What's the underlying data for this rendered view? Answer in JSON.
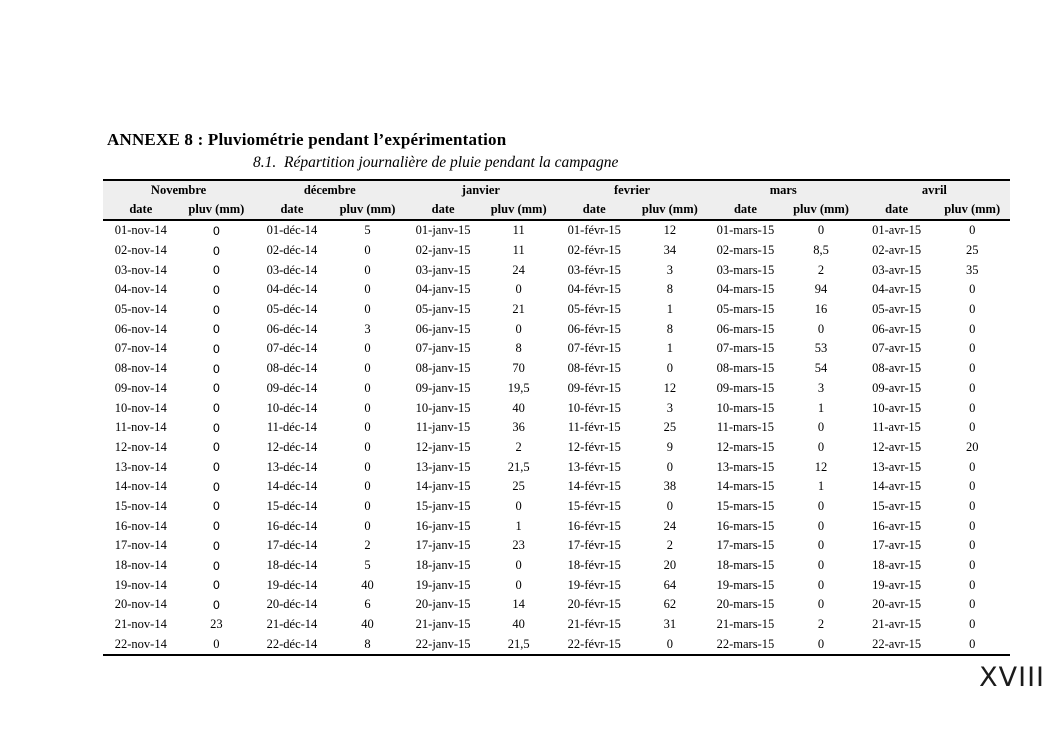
{
  "page": {
    "title": "ANNEXE 8 : Pluviométrie pendant l’expérimentation",
    "subtitle": "8.1.  Répartition journalière de pluie pendant la campagne",
    "page_number": "XVIII"
  },
  "table": {
    "months": [
      {
        "label": "Novembre",
        "date_header": "date",
        "pluv_header": "pluv (mm)",
        "dates": [
          "01-nov-14",
          "02-nov-14",
          "03-nov-14",
          "04-nov-14",
          "05-nov-14",
          "06-nov-14",
          "07-nov-14",
          "08-nov-14",
          "09-nov-14",
          "10-nov-14",
          "11-nov-14",
          "12-nov-14",
          "13-nov-14",
          "14-nov-14",
          "15-nov-14",
          "16-nov-14",
          "17-nov-14",
          "18-nov-14",
          "19-nov-14",
          "20-nov-14",
          "21-nov-14",
          "22-nov-14"
        ],
        "pluv": [
          "0",
          "0",
          "0",
          "0",
          "0",
          "0",
          "0",
          "0",
          "0",
          "0",
          "0",
          "0",
          "0",
          "0",
          "0",
          "0",
          "0",
          "0",
          "0",
          "0",
          "23",
          "0"
        ]
      },
      {
        "label": "décembre",
        "date_header": "date",
        "pluv_header": "pluv (mm)",
        "dates": [
          "01-déc-14",
          "02-déc-14",
          "03-déc-14",
          "04-déc-14",
          "05-déc-14",
          "06-déc-14",
          "07-déc-14",
          "08-déc-14",
          "09-déc-14",
          "10-déc-14",
          "11-déc-14",
          "12-déc-14",
          "13-déc-14",
          "14-déc-14",
          "15-déc-14",
          "16-déc-14",
          "17-déc-14",
          "18-déc-14",
          "19-déc-14",
          "20-déc-14",
          "21-déc-14",
          "22-déc-14"
        ],
        "pluv": [
          "5",
          "0",
          "0",
          "0",
          "0",
          "3",
          "0",
          "0",
          "0",
          "0",
          "0",
          "0",
          "0",
          "0",
          "0",
          "0",
          "2",
          "5",
          "40",
          "6",
          "40",
          "8"
        ]
      },
      {
        "label": "janvier",
        "date_header": "date",
        "pluv_header": "pluv (mm)",
        "dates": [
          "01-janv-15",
          "02-janv-15",
          "03-janv-15",
          "04-janv-15",
          "05-janv-15",
          "06-janv-15",
          "07-janv-15",
          "08-janv-15",
          "09-janv-15",
          "10-janv-15",
          "11-janv-15",
          "12-janv-15",
          "13-janv-15",
          "14-janv-15",
          "15-janv-15",
          "16-janv-15",
          "17-janv-15",
          "18-janv-15",
          "19-janv-15",
          "20-janv-15",
          "21-janv-15",
          "22-janv-15"
        ],
        "pluv": [
          "11",
          "11",
          "24",
          "0",
          "21",
          "0",
          "8",
          "70",
          "19,5",
          "40",
          "36",
          "2",
          "21,5",
          "25",
          "0",
          "1",
          "23",
          "0",
          "0",
          "14",
          "40",
          "21,5"
        ]
      },
      {
        "label": "fevrier",
        "date_header": "date",
        "pluv_header": "pluv (mm)",
        "dates": [
          "01-févr-15",
          "02-févr-15",
          "03-févr-15",
          "04-févr-15",
          "05-févr-15",
          "06-févr-15",
          "07-févr-15",
          "08-févr-15",
          "09-févr-15",
          "10-févr-15",
          "11-févr-15",
          "12-févr-15",
          "13-févr-15",
          "14-févr-15",
          "15-févr-15",
          "16-févr-15",
          "17-févr-15",
          "18-févr-15",
          "19-févr-15",
          "20-févr-15",
          "21-févr-15",
          "22-févr-15"
        ],
        "pluv": [
          "12",
          "34",
          "3",
          "8",
          "1",
          "8",
          "1",
          "0",
          "12",
          "3",
          "25",
          "9",
          "0",
          "38",
          "0",
          "24",
          "2",
          "20",
          "64",
          "62",
          "31",
          "0"
        ]
      },
      {
        "label": "mars",
        "date_header": "date",
        "pluv_header": "pluv (mm)",
        "dates": [
          "01-mars-15",
          "02-mars-15",
          "03-mars-15",
          "04-mars-15",
          "05-mars-15",
          "06-mars-15",
          "07-mars-15",
          "08-mars-15",
          "09-mars-15",
          "10-mars-15",
          "11-mars-15",
          "12-mars-15",
          "13-mars-15",
          "14-mars-15",
          "15-mars-15",
          "16-mars-15",
          "17-mars-15",
          "18-mars-15",
          "19-mars-15",
          "20-mars-15",
          "21-mars-15",
          "22-mars-15"
        ],
        "pluv": [
          "0",
          "8,5",
          "2",
          "94",
          "16",
          "0",
          "53",
          "54",
          "3",
          "1",
          "0",
          "0",
          "12",
          "1",
          "0",
          "0",
          "0",
          "0",
          "0",
          "0",
          "2",
          "0"
        ]
      },
      {
        "label": "avril",
        "date_header": "date",
        "pluv_header": "pluv (mm)",
        "dates": [
          "01-avr-15",
          "02-avr-15",
          "03-avr-15",
          "04-avr-15",
          "05-avr-15",
          "06-avr-15",
          "07-avr-15",
          "08-avr-15",
          "09-avr-15",
          "10-avr-15",
          "11-avr-15",
          "12-avr-15",
          "13-avr-15",
          "14-avr-15",
          "15-avr-15",
          "16-avr-15",
          "17-avr-15",
          "18-avr-15",
          "19-avr-15",
          "20-avr-15",
          "21-avr-15",
          "22-avr-15"
        ],
        "pluv": [
          "0",
          "25",
          "35",
          "0",
          "0",
          "0",
          "0",
          "0",
          "0",
          "0",
          "0",
          "20",
          "0",
          "0",
          "0",
          "0",
          "0",
          "0",
          "0",
          "0",
          "0",
          "0"
        ]
      }
    ]
  }
}
